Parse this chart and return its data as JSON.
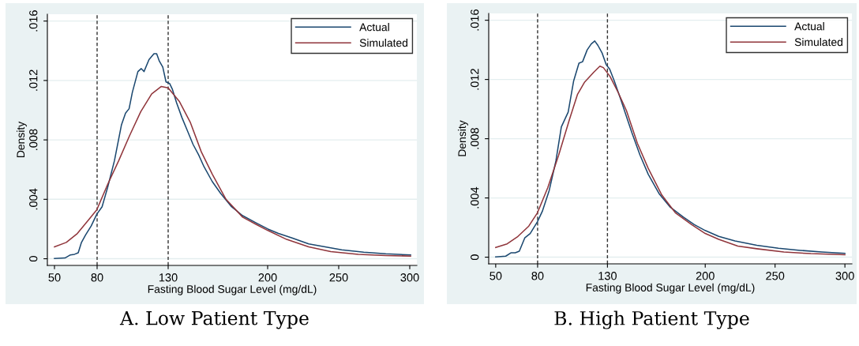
{
  "chart_data": [
    {
      "type": "line",
      "xlabel": "Fasting Blood Sugar Level (mg/dL)",
      "ylabel": "Density",
      "annotations": [
        "A. Low Patient Type"
      ],
      "xlim": [
        45,
        305
      ],
      "ylim": [
        -0.00045,
        0.01646
      ],
      "xticks": [
        50,
        80,
        130,
        200,
        250,
        300
      ],
      "yticks": [
        0,
        {
          "value": 0.004,
          "label": ".004"
        },
        {
          "value": 0.008,
          "label": ".008"
        },
        {
          "value": 0.012,
          "label": ".012"
        },
        {
          "value": 0.016,
          "label": ".016"
        }
      ],
      "grid": "y",
      "legend": "top right",
      "line_style": "solid",
      "ref_lines": [
        {
          "axis": "x",
          "value": 80,
          "label": null,
          "color": "#333333",
          "line_style": "dashed"
        },
        {
          "axis": "x",
          "value": 130,
          "label": null,
          "color": "#333333",
          "line_style": "dashed"
        }
      ],
      "series": [
        {
          "name": "Actual",
          "color": "#1a476f",
          "x": [
            50,
            57.4,
            61.2,
            64.1,
            66.7,
            69.0,
            71.9,
            75.8,
            79.8,
            83.5,
            87.4,
            92.2,
            97.1,
            100.0,
            102.5,
            104.8,
            108.7,
            111.0,
            113.0,
            116.5,
            120.0,
            121.9,
            123.8,
            126.2,
            128.5,
            131.0,
            133.0,
            135.9,
            139.7,
            143.6,
            147.5,
            151.4,
            155.2,
            161.0,
            166.9,
            174.6,
            182.4,
            192.1,
            200.2,
            207.6,
            217.2,
            228.9,
            240.5,
            252.1,
            267.6,
            283.1,
            300.6
          ],
          "values": [
            2e-05,
            5e-05,
            0.00026,
            0.0003,
            0.0004,
            0.0011,
            0.0016,
            0.0022,
            0.003,
            0.0035,
            0.0048,
            0.0066,
            0.009,
            0.0098,
            0.0101,
            0.0112,
            0.0126,
            0.0128,
            0.0126,
            0.0134,
            0.0138,
            0.0138,
            0.0133,
            0.0129,
            0.0119,
            0.0118,
            0.0114,
            0.0105,
            0.0095,
            0.0086,
            0.0077,
            0.007,
            0.0062,
            0.0052,
            0.0044,
            0.0035,
            0.0029,
            0.0024,
            0.002,
            0.0017,
            0.0014,
            0.001,
            0.0008,
            0.0006,
            0.00044,
            0.00033,
            0.00026
          ]
        },
        {
          "name": "Simulated",
          "color": "#90353b",
          "x": [
            50,
            58.3,
            66.1,
            73.8,
            79.8,
            87.4,
            95.2,
            102.9,
            110.7,
            118.4,
            125.2,
            130.0,
            137.8,
            145.5,
            153.3,
            161.0,
            170.7,
            182.4,
            192.1,
            200.2,
            213.4,
            228.9,
            244.4,
            263.8,
            283.1,
            300.6
          ],
          "values": [
            0.0008,
            0.0011,
            0.0017,
            0.0026,
            0.0033,
            0.005,
            0.0066,
            0.0083,
            0.0099,
            0.0111,
            0.0116,
            0.0115,
            0.0106,
            0.0092,
            0.0072,
            0.0057,
            0.004,
            0.0028,
            0.0023,
            0.0019,
            0.0013,
            0.0008,
            0.00048,
            0.00029,
            0.00022,
            0.00018
          ]
        }
      ]
    },
    {
      "type": "line",
      "xlabel": "Fasting Blood Sugar Level (mg/dL)",
      "ylabel": "Density",
      "annotations": [
        "B. High Patient Type"
      ],
      "xlim": [
        45,
        305
      ],
      "ylim": [
        -0.00045,
        0.01646
      ],
      "xticks": [
        50,
        80,
        130,
        200,
        250,
        300
      ],
      "yticks": [
        0,
        {
          "value": 0.004,
          "label": ".004"
        },
        {
          "value": 0.008,
          "label": ".008"
        },
        {
          "value": 0.012,
          "label": ".012"
        },
        {
          "value": 0.016,
          "label": ".016"
        }
      ],
      "grid": "y",
      "legend": "top right",
      "line_style": "solid",
      "ref_lines": [
        {
          "axis": "x",
          "value": 80,
          "label": null,
          "color": "#333333",
          "line_style": "dashed"
        },
        {
          "axis": "x",
          "value": 130,
          "label": null,
          "color": "#333333",
          "line_style": "dashed"
        }
      ],
      "series": [
        {
          "name": "Actual",
          "color": "#1a476f",
          "x": [
            50,
            57.2,
            61.1,
            64.0,
            66.9,
            70.8,
            74.7,
            79.9,
            83.4,
            88.3,
            93.1,
            97.0,
            101.9,
            105.8,
            109.6,
            112.2,
            115.5,
            118.4,
            120.9,
            123.2,
            126.1,
            129.1,
            131.6,
            134.9,
            139.7,
            143.6,
            147.5,
            153.3,
            159.2,
            166.9,
            174.7,
            184.4,
            192.2,
            200.0,
            209.7,
            221.3,
            236.9,
            252.4,
            268.0,
            283.5,
            300
          ],
          "values": [
            2e-05,
            7e-05,
            0.0003,
            0.0003,
            0.0004,
            0.0013,
            0.0016,
            0.0024,
            0.0031,
            0.0045,
            0.0065,
            0.0088,
            0.0098,
            0.0119,
            0.0131,
            0.0132,
            0.014,
            0.0144,
            0.0146,
            0.0143,
            0.0138,
            0.013,
            0.0127,
            0.0119,
            0.0106,
            0.0095,
            0.0084,
            0.0069,
            0.0056,
            0.0043,
            0.0034,
            0.0027,
            0.0022,
            0.0018,
            0.0014,
            0.0011,
            0.0008,
            0.0006,
            0.00046,
            0.00035,
            0.00026
          ]
        },
        {
          "name": "Simulated",
          "color": "#90353b",
          "x": [
            50,
            58.2,
            65.9,
            73.7,
            79.9,
            87.3,
            95.1,
            102.8,
            108.6,
            113.5,
            120.3,
            124.6,
            127.1,
            131.9,
            137.8,
            143.6,
            151.4,
            159.2,
            168.9,
            178.6,
            190.3,
            200.0,
            209.7,
            223.3,
            236.9,
            256.3,
            275.7,
            300
          ],
          "values": [
            0.00066,
            0.0009,
            0.0014,
            0.0021,
            0.003,
            0.0047,
            0.0069,
            0.0093,
            0.011,
            0.0118,
            0.0125,
            0.0129,
            0.0128,
            0.0122,
            0.0111,
            0.0099,
            0.0077,
            0.006,
            0.0042,
            0.003,
            0.0022,
            0.0016,
            0.0012,
            0.00075,
            0.00057,
            0.00035,
            0.00024,
            0.00017
          ]
        }
      ]
    }
  ]
}
